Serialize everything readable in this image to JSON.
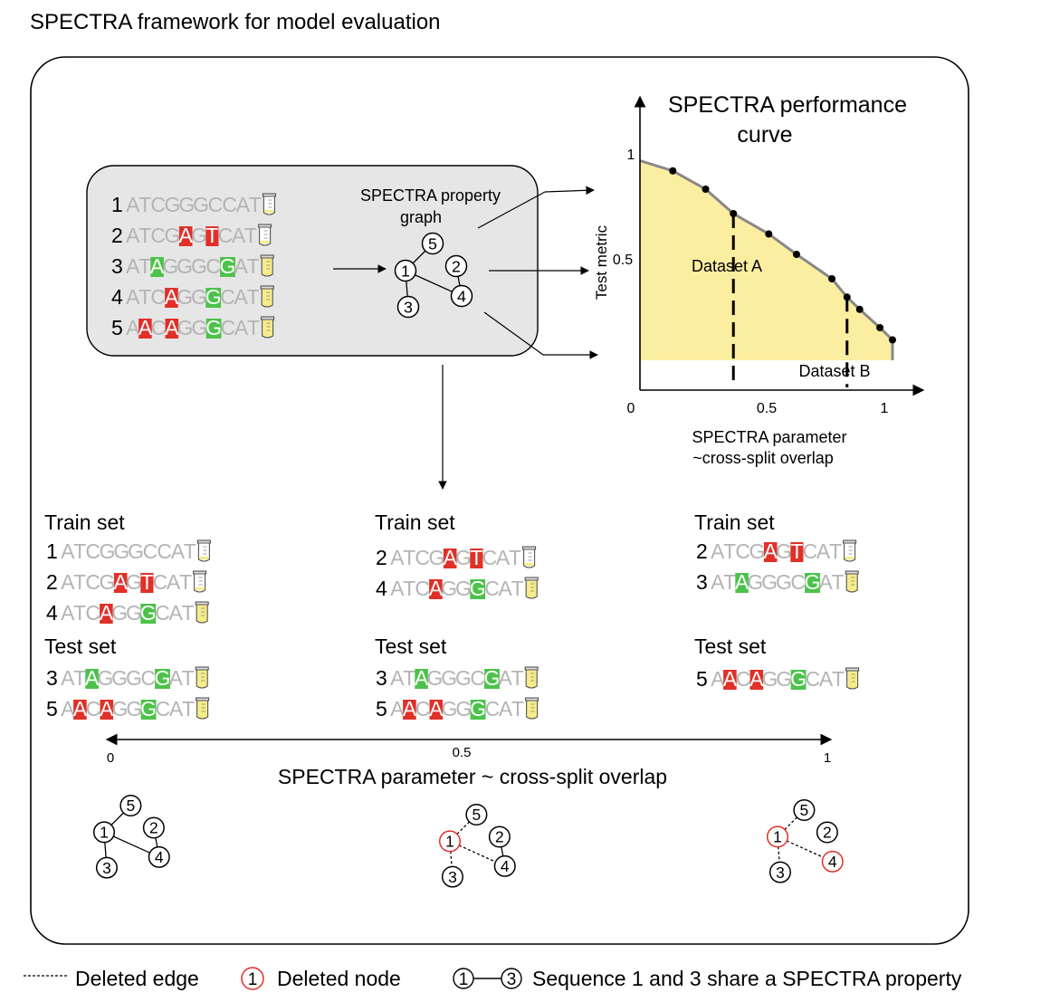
{
  "title": "SPECTRA framework for model evaluation",
  "input_sequences": [
    {
      "num": "1",
      "seq": "ATCGGGCCAT",
      "red": [],
      "green": [],
      "tube": "empty"
    },
    {
      "num": "2",
      "seq": "ATCGAGTCAT",
      "red": [
        4,
        6
      ],
      "green": [],
      "tube": "empty"
    },
    {
      "num": "3",
      "seq": "ATAGGGCGAT",
      "red": [],
      "green": [
        2,
        7
      ],
      "tube": "full"
    },
    {
      "num": "4",
      "seq": "ATCAGGGCAT",
      "red": [
        3
      ],
      "green": [
        6
      ],
      "tube": "full"
    },
    {
      "num": "5",
      "seq": "AACAGGGCAT",
      "red": [
        1,
        3
      ],
      "green": [
        6
      ],
      "tube": "full"
    }
  ],
  "property_graph": {
    "label_line1": "SPECTRA property",
    "label_line2": "graph"
  },
  "graph_nodes": [
    "1",
    "2",
    "3",
    "4",
    "5"
  ],
  "performance_curve": {
    "title_line1": "SPECTRA performance",
    "title_line2": "curve",
    "ylabel": "Test metric",
    "xlabel_line1": "SPECTRA parameter",
    "xlabel_line2": "~cross-split overlap",
    "x_ticks": [
      "0",
      "0.5",
      "1"
    ],
    "y_ticks": [
      "1",
      "0.5"
    ],
    "dataset_a": "Dataset A",
    "dataset_b": "Dataset B",
    "fill_color": "#fbeea0",
    "line_color": "#888888"
  },
  "chart_data": {
    "type": "area",
    "title": "SPECTRA performance curve",
    "xlabel": "SPECTRA parameter ~cross-split overlap",
    "ylabel": "Test metric",
    "x": [
      0.0,
      0.13,
      0.26,
      0.37,
      0.51,
      0.62,
      0.76,
      0.82,
      0.87,
      0.95,
      1.0
    ],
    "y": [
      0.98,
      0.93,
      0.84,
      0.72,
      0.62,
      0.52,
      0.4,
      0.31,
      0.25,
      0.16,
      0.1
    ],
    "xlim": [
      0,
      1
    ],
    "ylim": [
      0,
      1
    ],
    "vlines": [
      {
        "label": "Dataset A",
        "x": 0.37
      },
      {
        "label": "Dataset B",
        "x": 0.82
      }
    ]
  },
  "splits": [
    {
      "train_label": "Train set",
      "train": [
        {
          "num": "1",
          "seq": "ATCGGGCCAT",
          "red": [],
          "green": [],
          "tube": "empty"
        },
        {
          "num": "2",
          "seq": "ATCGAGTCAT",
          "red": [
            4,
            6
          ],
          "green": [],
          "tube": "empty"
        },
        {
          "num": "4",
          "seq": "ATCAGGGCAT",
          "red": [
            3
          ],
          "green": [
            6
          ],
          "tube": "full"
        }
      ],
      "test_label": "Test set",
      "test": [
        {
          "num": "3",
          "seq": "ATAGGGCGAT",
          "red": [],
          "green": [
            2,
            7
          ],
          "tube": "full"
        },
        {
          "num": "5",
          "seq": "AACAGGGCAT",
          "red": [
            1,
            3
          ],
          "green": [
            6
          ],
          "tube": "full"
        }
      ]
    },
    {
      "train_label": "Train set",
      "train": [
        {
          "num": "2",
          "seq": "ATCGAGTCAT",
          "red": [
            4,
            6
          ],
          "green": [],
          "tube": "empty"
        },
        {
          "num": "4",
          "seq": "ATCAGGGCAT",
          "red": [
            3
          ],
          "green": [
            6
          ],
          "tube": "full"
        }
      ],
      "test_label": "Test set",
      "test": [
        {
          "num": "3",
          "seq": "ATAGGGCGAT",
          "red": [],
          "green": [
            2,
            7
          ],
          "tube": "full"
        },
        {
          "num": "5",
          "seq": "AACAGGGCAT",
          "red": [
            1,
            3
          ],
          "green": [
            6
          ],
          "tube": "full"
        }
      ]
    },
    {
      "train_label": "Train set",
      "train": [
        {
          "num": "2",
          "seq": "ATCGAGTCAT",
          "red": [
            4,
            6
          ],
          "green": [],
          "tube": "empty"
        },
        {
          "num": "3",
          "seq": "ATAGGGCGAT",
          "red": [],
          "green": [
            2,
            7
          ],
          "tube": "full"
        }
      ],
      "test_label": "Test set",
      "test": [
        {
          "num": "5",
          "seq": "AACAGGGCAT",
          "red": [
            1,
            3
          ],
          "green": [
            6
          ],
          "tube": "full"
        }
      ]
    }
  ],
  "overlap_axis": {
    "left": "0",
    "mid": "0.5",
    "right": "1",
    "label": "SPECTRA parameter ~ cross-split overlap"
  },
  "legend": {
    "deleted_edge": "Deleted edge",
    "deleted_node_num": "1",
    "deleted_node": "Deleted node",
    "share_num_a": "1",
    "share_num_b": "3",
    "share_text": "Sequence 1 and 3 share a SPECTRA property"
  },
  "colors": {
    "red": "#e03028",
    "green": "#4cc24a",
    "gray_text": "#b4b4b4",
    "panel": "#e6e6e6",
    "deleted_node": "#e03028"
  }
}
